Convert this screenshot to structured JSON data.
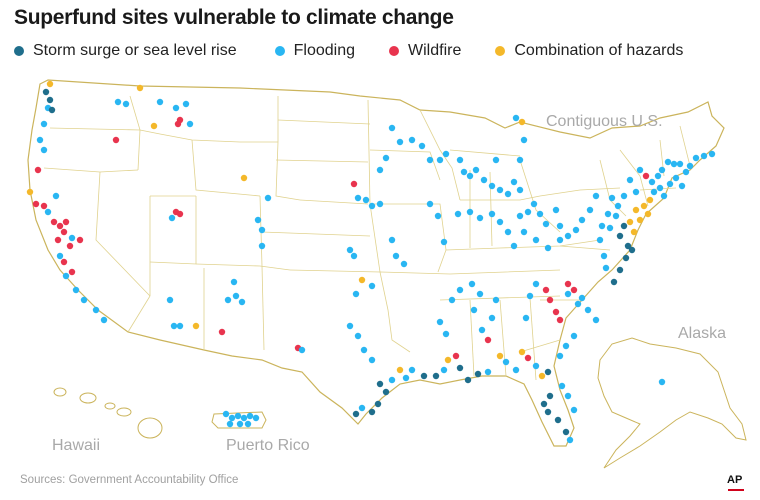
{
  "title": "Superfund sites vulnerable to climate change",
  "legend": [
    {
      "label": "Storm surge or sea level rise",
      "color": "#1f6e8c"
    },
    {
      "label": "Flooding",
      "color": "#29b6f2"
    },
    {
      "label": "Wildfire",
      "color": "#e8344e"
    },
    {
      "label": "Combination of hazards",
      "color": "#f4b82a"
    }
  ],
  "regions": {
    "contiguous": "Contiguous U.S.",
    "alaska": "Alaska",
    "hawaii": "Hawaii",
    "puerto_rico": "Puerto Rico"
  },
  "source": "Sources: Government Accountability Office",
  "logo": "AP",
  "colors": {
    "land": "#ffffff",
    "border": "#d8c77a",
    "coast": "#cbb45c",
    "label_gray": "#a9a9a9"
  }
}
